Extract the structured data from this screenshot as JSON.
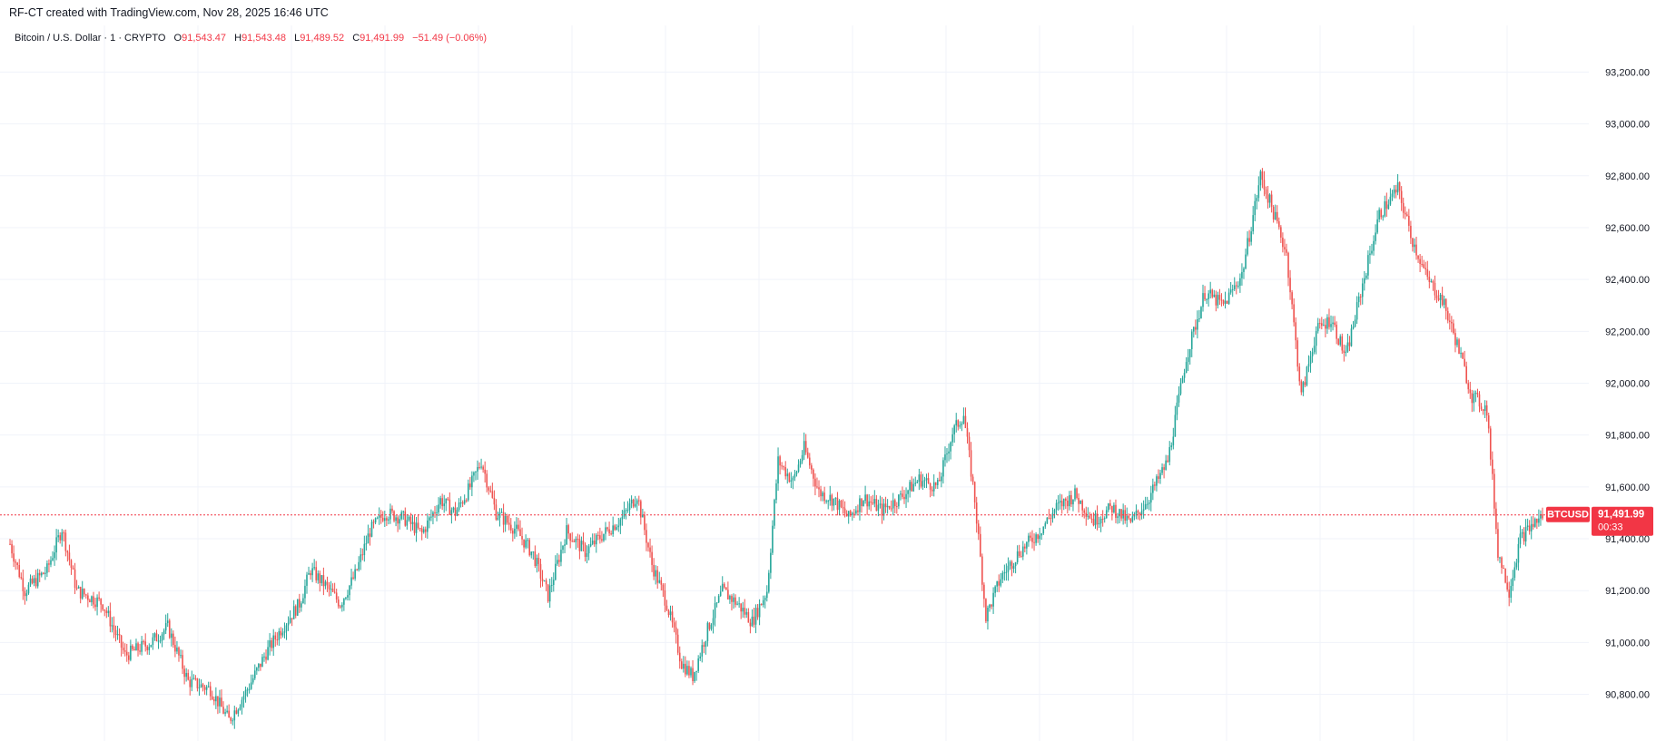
{
  "header": {
    "credit": "RF-CT created with TradingView.com, Nov 28, 2025 16:46 UTC"
  },
  "legend": {
    "symbol": "Bitcoin / U.S. Dollar · 1 · CRYPTO",
    "o_label": "O",
    "o_value": "91,543.47",
    "h_label": "H",
    "h_value": "91,543.48",
    "l_label": "L",
    "l_value": "91,489.52",
    "c_label": "C",
    "c_value": "91,491.99",
    "change": "−51.49 (−0.06%)"
  },
  "current_price": {
    "ticker": "BTCUSD",
    "price": "91,491.99",
    "countdown": "00:33",
    "value": 91491.99
  },
  "colors": {
    "up": "#26a69a",
    "down": "#ef5350",
    "label_bg": "#f23645",
    "grid": "#f0f3fa",
    "text": "#131722"
  },
  "chart_data": {
    "type": "candlestick",
    "symbol": "BTCUSD",
    "interval": "1",
    "y_axis_ticks": [
      "93,200.00",
      "93,000.00",
      "92,800.00",
      "92,600.00",
      "92,400.00",
      "92,200.00",
      "92,000.00",
      "91,800.00",
      "91,600.00",
      "91,400.00",
      "91,200.00",
      "91,000.00",
      "90,800.00"
    ],
    "y_tick_values": [
      93200,
      93000,
      92800,
      92600,
      92400,
      92200,
      92000,
      91800,
      91600,
      91400,
      91200,
      91000,
      90800
    ],
    "ylim": [
      90620,
      93380
    ],
    "grid": true,
    "approx_close_path": [
      [
        0,
        91380
      ],
      [
        8,
        91200
      ],
      [
        20,
        91280
      ],
      [
        28,
        91440
      ],
      [
        36,
        91200
      ],
      [
        50,
        91150
      ],
      [
        62,
        90950
      ],
      [
        76,
        91000
      ],
      [
        85,
        91060
      ],
      [
        96,
        90850
      ],
      [
        108,
        90820
      ],
      [
        118,
        90700
      ],
      [
        128,
        90820
      ],
      [
        138,
        90960
      ],
      [
        146,
        91050
      ],
      [
        156,
        91150
      ],
      [
        162,
        91280
      ],
      [
        170,
        91220
      ],
      [
        178,
        91150
      ],
      [
        186,
        91260
      ],
      [
        194,
        91430
      ],
      [
        202,
        91500
      ],
      [
        212,
        91480
      ],
      [
        222,
        91420
      ],
      [
        232,
        91550
      ],
      [
        240,
        91500
      ],
      [
        248,
        91600
      ],
      [
        254,
        91700
      ],
      [
        262,
        91500
      ],
      [
        272,
        91440
      ],
      [
        282,
        91340
      ],
      [
        290,
        91180
      ],
      [
        300,
        91430
      ],
      [
        310,
        91350
      ],
      [
        320,
        91420
      ],
      [
        330,
        91480
      ],
      [
        338,
        91570
      ],
      [
        346,
        91300
      ],
      [
        354,
        91150
      ],
      [
        362,
        90920
      ],
      [
        368,
        90870
      ],
      [
        376,
        91050
      ],
      [
        384,
        91200
      ],
      [
        392,
        91150
      ],
      [
        400,
        91080
      ],
      [
        408,
        91200
      ],
      [
        414,
        91700
      ],
      [
        422,
        91620
      ],
      [
        428,
        91750
      ],
      [
        436,
        91580
      ],
      [
        444,
        91550
      ],
      [
        452,
        91480
      ],
      [
        460,
        91560
      ],
      [
        470,
        91510
      ],
      [
        480,
        91560
      ],
      [
        490,
        91630
      ],
      [
        500,
        91600
      ],
      [
        508,
        91810
      ],
      [
        514,
        91880
      ],
      [
        520,
        91550
      ],
      [
        526,
        91100
      ],
      [
        534,
        91250
      ],
      [
        544,
        91350
      ],
      [
        554,
        91420
      ],
      [
        564,
        91520
      ],
      [
        574,
        91570
      ],
      [
        584,
        91470
      ],
      [
        594,
        91520
      ],
      [
        604,
        91460
      ],
      [
        614,
        91560
      ],
      [
        624,
        91700
      ],
      [
        634,
        92100
      ],
      [
        644,
        92350
      ],
      [
        654,
        92300
      ],
      [
        664,
        92420
      ],
      [
        674,
        92800
      ],
      [
        680,
        92680
      ],
      [
        688,
        92500
      ],
      [
        696,
        91950
      ],
      [
        704,
        92200
      ],
      [
        712,
        92250
      ],
      [
        720,
        92100
      ],
      [
        728,
        92350
      ],
      [
        738,
        92650
      ],
      [
        748,
        92750
      ],
      [
        756,
        92550
      ],
      [
        764,
        92400
      ],
      [
        772,
        92320
      ],
      [
        780,
        92150
      ],
      [
        788,
        91950
      ],
      [
        796,
        91900
      ],
      [
        802,
        91350
      ],
      [
        808,
        91200
      ],
      [
        814,
        91400
      ],
      [
        820,
        91450
      ],
      [
        826,
        91490
      ]
    ],
    "approx_high": 93030,
    "approx_low": 90680
  }
}
